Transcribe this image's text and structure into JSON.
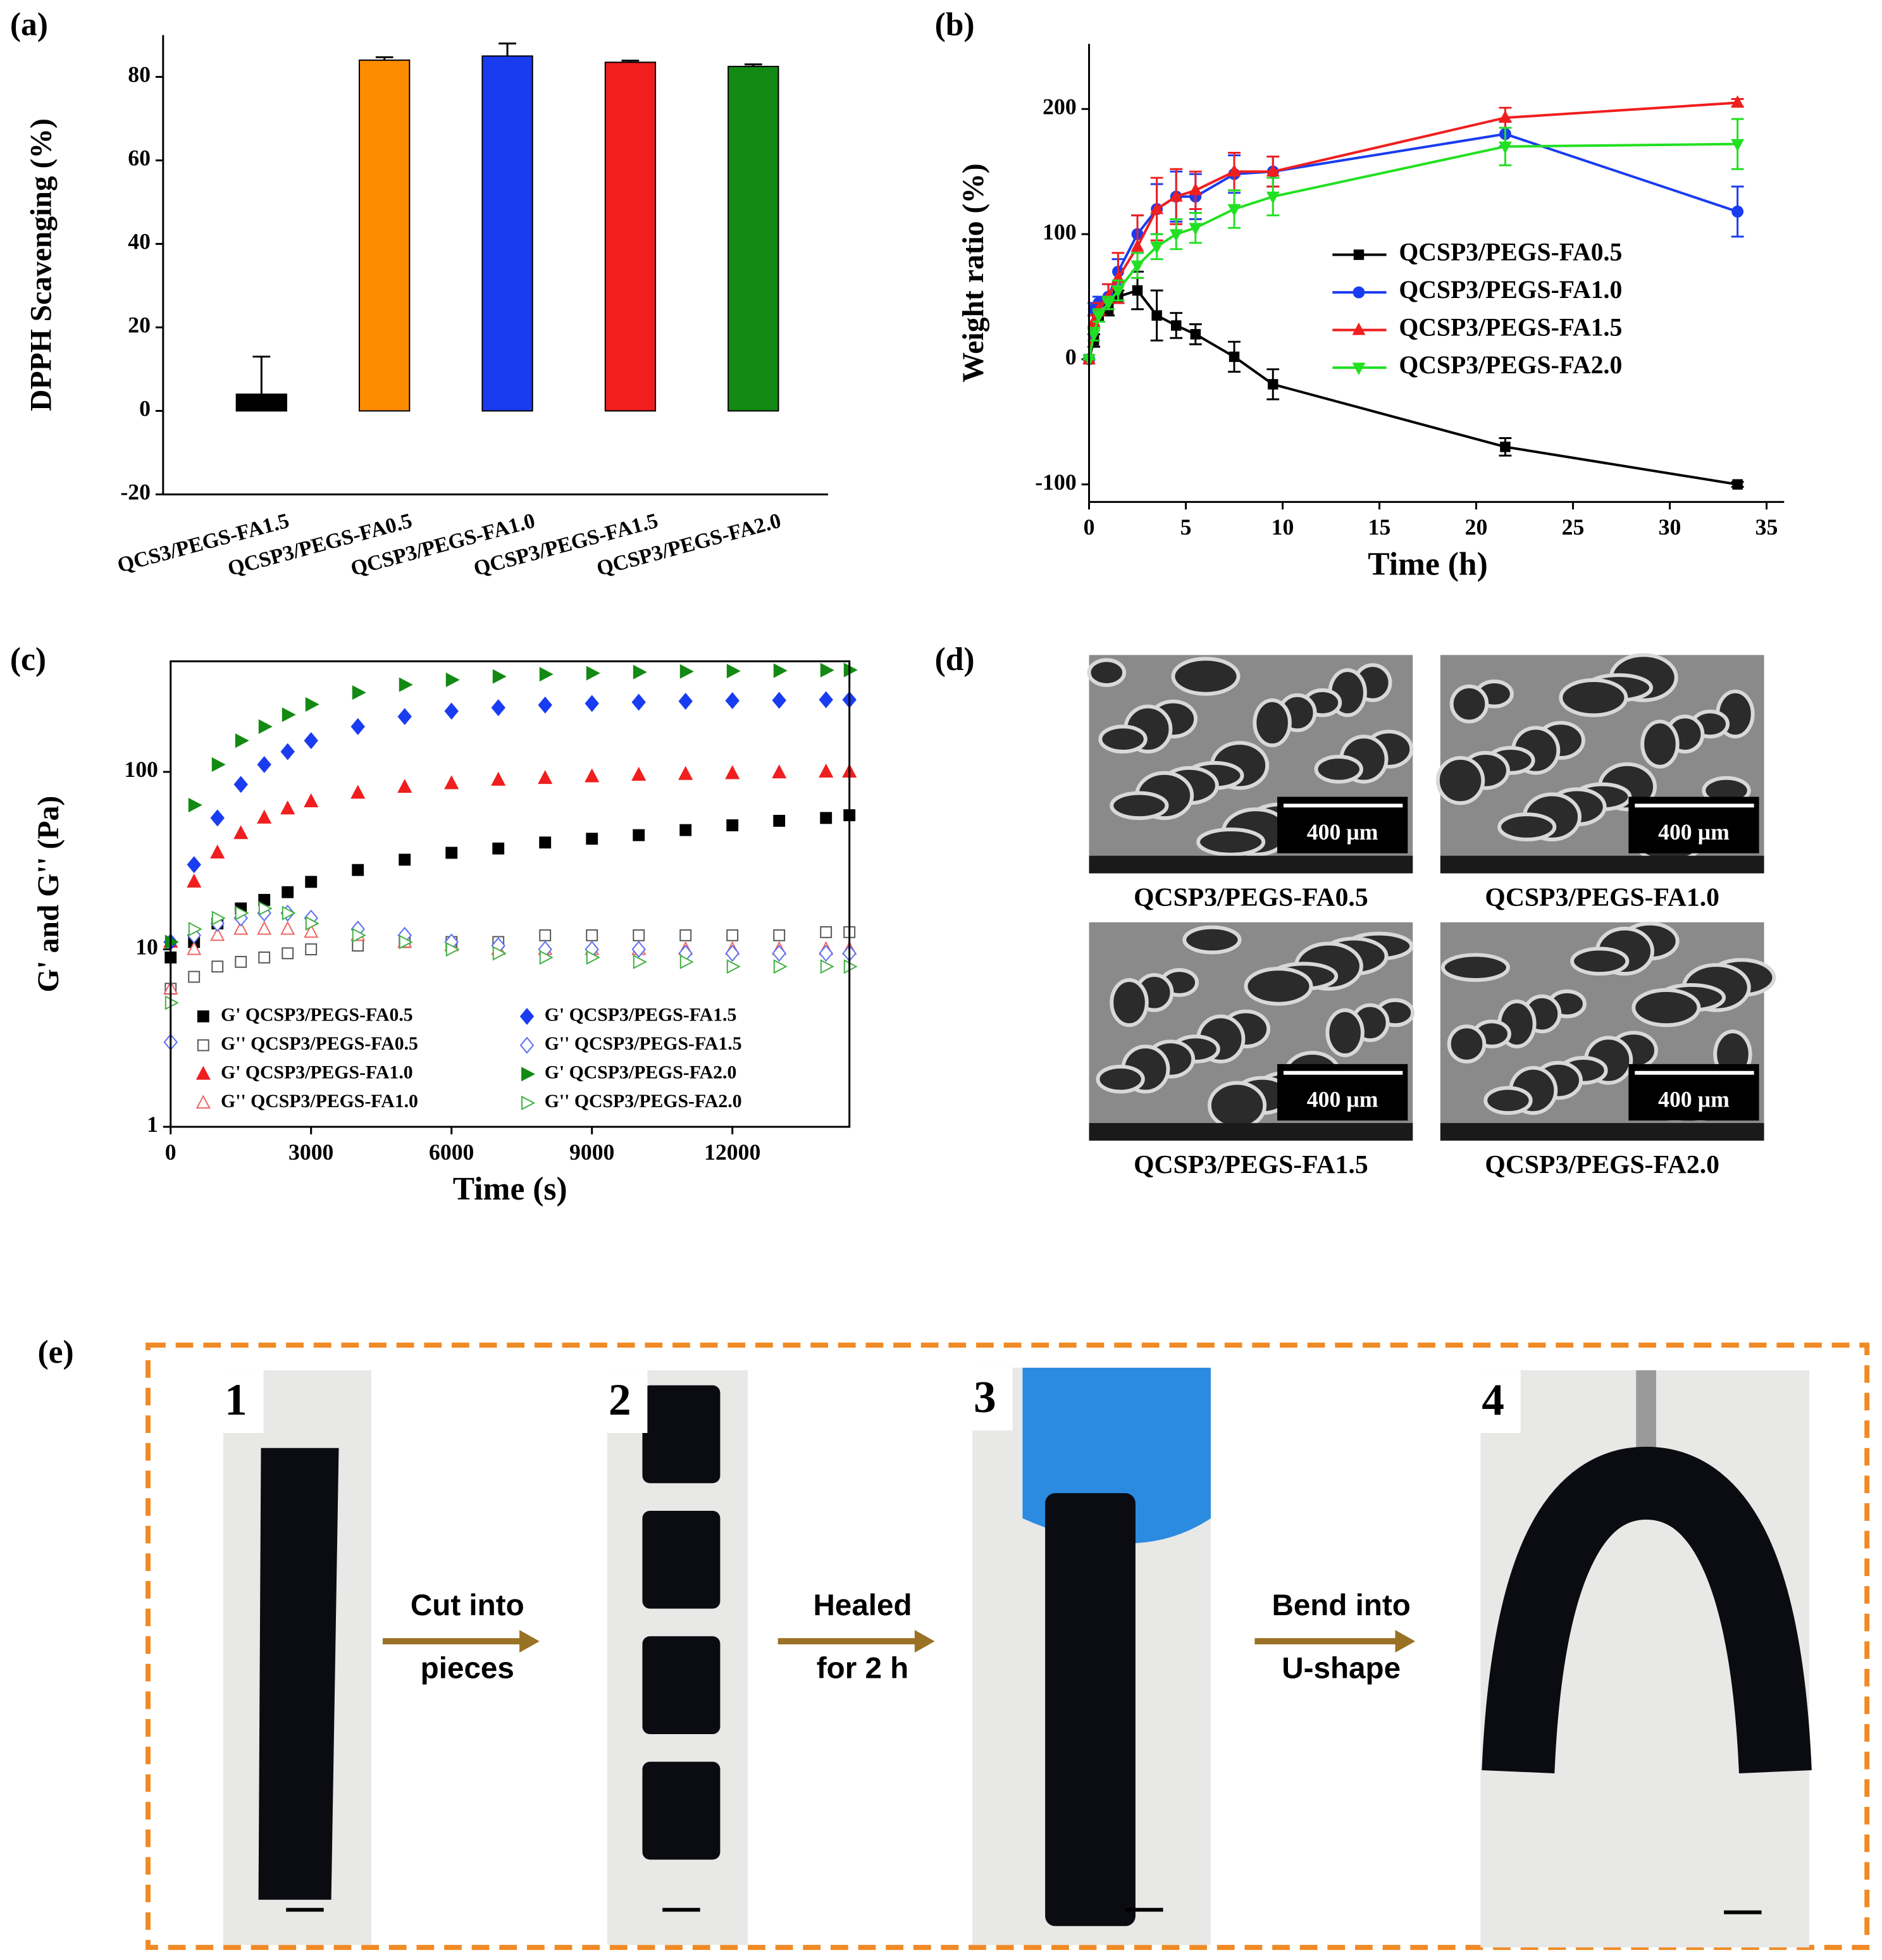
{
  "panel_labels": [
    "(a)",
    "(b)",
    "(c)",
    "(d)",
    "(e)"
  ],
  "chart_data": [
    {
      "type": "bar",
      "y_label": "DPPH Scavenging (%)",
      "categories": [
        "QCS3/PEGS-FA1.5",
        "QCSP3/PEGS-FA0.5",
        "QCSP3/PEGS-FA1.0",
        "QCSP3/PEGS-FA1.5",
        "QCSP3/PEGS-FA2.0"
      ],
      "values": [
        4,
        84,
        85,
        83.5,
        82.5
      ],
      "errors": [
        9,
        0.7,
        3,
        0.4,
        0.5
      ],
      "colors": [
        "#000000",
        "#ff8c00",
        "#1a3cf0",
        "#f01e1e",
        "#138a13"
      ],
      "ylim": [
        -20,
        90
      ],
      "yticks": [
        -20,
        0,
        20,
        40,
        60,
        80
      ]
    },
    {
      "type": "line",
      "x_label": "Time (h)",
      "y_label": "Weight ratio (%)",
      "x": [
        0,
        0.25,
        0.5,
        1,
        1.5,
        2.5,
        3.5,
        4.5,
        5.5,
        7.5,
        9.5,
        21.5,
        33.5
      ],
      "series": [
        {
          "name": "QCSP3/PEGS-FA0.5",
          "color": "#000000",
          "marker": "square",
          "values": [
            0,
            15,
            35,
            40,
            50,
            55,
            35,
            27,
            20,
            2,
            -20,
            -70,
            -100
          ],
          "errors": [
            0,
            5,
            5,
            5,
            5,
            15,
            20,
            10,
            8,
            12,
            12,
            7,
            2
          ]
        },
        {
          "name": "QCSP3/PEGS-FA1.0",
          "color": "#1a3cf0",
          "marker": "circle",
          "values": [
            0,
            40,
            45,
            50,
            70,
            100,
            120,
            130,
            130,
            148,
            150,
            180,
            118
          ],
          "errors": [
            0,
            5,
            5,
            10,
            10,
            15,
            20,
            20,
            18,
            15,
            12,
            10,
            20
          ]
        },
        {
          "name": "QCSP3/PEGS-FA1.5",
          "color": "#f01e1e",
          "marker": "triangle",
          "values": [
            0,
            30,
            40,
            50,
            65,
            90,
            120,
            130,
            135,
            150,
            150,
            193,
            205
          ],
          "errors": [
            0,
            5,
            5,
            10,
            20,
            25,
            25,
            22,
            15,
            15,
            12,
            8,
            3
          ]
        },
        {
          "name": "QCSP3/PEGS-FA2.0",
          "color": "#22e022",
          "marker": "triangle-down",
          "values": [
            0,
            20,
            35,
            45,
            55,
            75,
            90,
            100,
            105,
            120,
            130,
            170,
            172
          ],
          "errors": [
            0,
            5,
            5,
            5,
            8,
            10,
            10,
            12,
            12,
            15,
            15,
            15,
            20
          ]
        }
      ],
      "xlim": [
        0,
        35
      ],
      "xticks": [
        0,
        5,
        10,
        15,
        20,
        25,
        30,
        35
      ],
      "ylim": [
        -114,
        252
      ],
      "yticks": [
        -100,
        0,
        100,
        200
      ]
    },
    {
      "type": "scatter",
      "x_label": "Time (s)",
      "y_label": "G' and G'' (Pa)",
      "log_y": true,
      "x": [
        0,
        500,
        1000,
        1500,
        2000,
        2500,
        3000,
        4000,
        5000,
        6000,
        7000,
        8000,
        9000,
        10000,
        11000,
        12000,
        13000,
        14000,
        14500
      ],
      "series": [
        {
          "name": "G' QCSP3/PEGS-FA0.5",
          "color": "#000000",
          "marker": "square",
          "filled": true,
          "values": [
            9,
            11,
            14,
            17,
            19,
            21,
            24,
            28,
            32,
            35,
            37,
            40,
            42,
            44,
            47,
            50,
            53,
            55,
            57
          ]
        },
        {
          "name": "G'' QCSP3/PEGS-FA0.5",
          "color": "#555555",
          "marker": "square",
          "filled": false,
          "values": [
            6,
            7,
            8,
            8.5,
            9,
            9.5,
            10,
            10.5,
            11,
            11,
            11,
            12,
            12,
            12,
            12,
            12,
            12,
            12.5,
            12.5
          ]
        },
        {
          "name": "G' QCSP3/PEGS-FA1.0",
          "color": "#f01e1e",
          "marker": "triangle",
          "filled": true,
          "values": [
            11,
            24,
            35,
            45,
            55,
            62,
            68,
            76,
            82,
            86,
            90,
            92,
            94,
            96,
            97,
            98,
            99,
            100,
            100
          ]
        },
        {
          "name": "G'' QCSP3/PEGS-FA1.0",
          "color": "#f06464",
          "marker": "triangle",
          "filled": false,
          "values": [
            6,
            10,
            12,
            13,
            13,
            13,
            12.5,
            12,
            11,
            10.5,
            10,
            10,
            10,
            10,
            10,
            10,
            10,
            10,
            10
          ]
        },
        {
          "name": "G' QCSP3/PEGS-FA1.5",
          "color": "#1a3cf0",
          "marker": "diamond",
          "filled": true,
          "values": [
            11,
            30,
            55,
            85,
            110,
            130,
            150,
            180,
            205,
            220,
            230,
            238,
            243,
            247,
            250,
            252,
            253,
            255,
            255
          ]
        },
        {
          "name": "G'' QCSP3/PEGS-FA1.5",
          "color": "#5a6ef0",
          "marker": "diamond",
          "filled": false,
          "values": [
            3,
            12,
            14,
            15,
            16,
            16,
            15,
            13,
            12,
            11,
            10.5,
            10,
            10,
            10,
            9.5,
            9.5,
            9.5,
            9.5,
            9.5
          ]
        },
        {
          "name": "G' QCSP3/PEGS-FA2.0",
          "color": "#138a13",
          "marker": "triangle-right",
          "filled": true,
          "values": [
            11,
            65,
            110,
            150,
            180,
            210,
            240,
            280,
            310,
            330,
            345,
            355,
            360,
            365,
            368,
            370,
            372,
            374,
            375
          ]
        },
        {
          "name": "G'' QCSP3/PEGS-FA2.0",
          "color": "#40b040",
          "marker": "triangle-right",
          "filled": false,
          "values": [
            5,
            13,
            15,
            16,
            17,
            16,
            14,
            12,
            11,
            10,
            9.5,
            9,
            9,
            8.5,
            8.5,
            8,
            8,
            8,
            8
          ]
        }
      ],
      "xlim": [
        0,
        14500
      ],
      "xticks": [
        0,
        3000,
        6000,
        9000,
        12000
      ],
      "ylim": [
        1,
        420
      ],
      "yticks": [
        1,
        10,
        100
      ]
    }
  ],
  "sem_images": [
    {
      "caption": "QCSP3/PEGS-FA0.5",
      "scale_bar": "400 µm"
    },
    {
      "caption": "QCSP3/PEGS-FA1.0",
      "scale_bar": "400 µm"
    },
    {
      "caption": "QCSP3/PEGS-FA1.5",
      "scale_bar": "400 µm"
    },
    {
      "caption": "QCSP3/PEGS-FA2.0",
      "scale_bar": "400 µm"
    }
  ],
  "healing": {
    "steps": [
      "1",
      "2",
      "3",
      "4"
    ],
    "arrows": [
      [
        "Cut into",
        "pieces"
      ],
      [
        "Healed",
        "for 2 h"
      ],
      [
        "Bend into",
        "U-shape"
      ]
    ]
  }
}
